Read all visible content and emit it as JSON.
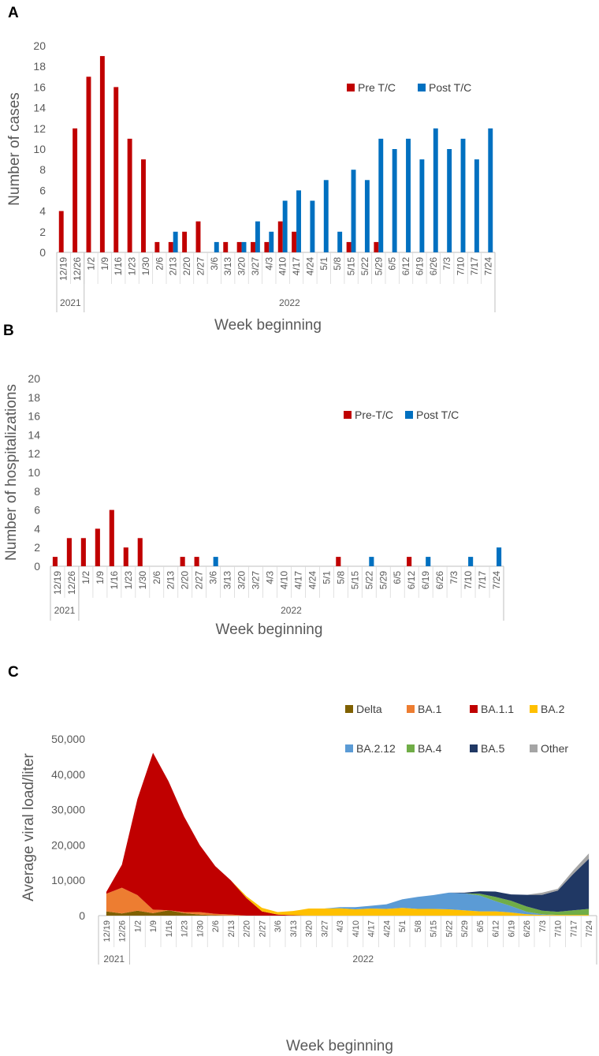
{
  "chart_data": [
    {
      "panel": "A",
      "type": "bar",
      "ylabel": "Number of cases",
      "xlabel": "Week beginning",
      "ylim": [
        0,
        20
      ],
      "yticks": [
        "0",
        "2",
        "4",
        "6",
        "8",
        "10",
        "12",
        "14",
        "16",
        "18",
        "20"
      ],
      "categories": [
        "12/19",
        "12/26",
        "1/2",
        "1/9",
        "1/16",
        "1/23",
        "1/30",
        "2/6",
        "2/13",
        "2/20",
        "2/27",
        "3/6",
        "3/13",
        "3/20",
        "3/27",
        "4/3",
        "4/10",
        "4/17",
        "4/24",
        "5/1",
        "5/8",
        "5/15",
        "5/22",
        "5/29",
        "6/5",
        "6/12",
        "6/19",
        "6/26",
        "7/3",
        "7/10",
        "7/17",
        "7/24"
      ],
      "years": [
        {
          "label": "2021",
          "span": [
            0,
            1
          ]
        },
        {
          "label": "2022",
          "span": [
            2,
            31
          ]
        }
      ],
      "series": [
        {
          "name": "Pre T/C",
          "color": "#C00000",
          "values": [
            4,
            12,
            17,
            19,
            16,
            11,
            9,
            1,
            1,
            2,
            3,
            0,
            1,
            1,
            1,
            1,
            3,
            2,
            0,
            0,
            0,
            1,
            0,
            1,
            0,
            0,
            0,
            0,
            0,
            0,
            0,
            0
          ]
        },
        {
          "name": "Post T/C",
          "color": "#0070C0",
          "values": [
            0,
            0,
            0,
            0,
            0,
            0,
            0,
            0,
            2,
            0,
            0,
            1,
            0,
            1,
            3,
            2,
            5,
            6,
            5,
            7,
            2,
            8,
            7,
            11,
            10,
            11,
            9,
            12,
            10,
            11,
            9,
            12
          ]
        }
      ]
    },
    {
      "panel": "B",
      "type": "bar",
      "ylabel": "Number of hospitalizations",
      "xlabel": "Week beginning",
      "ylim": [
        0,
        20
      ],
      "yticks": [
        "0",
        "2",
        "4",
        "6",
        "8",
        "10",
        "12",
        "14",
        "16",
        "18",
        "20"
      ],
      "categories": [
        "12/19",
        "12/26",
        "1/2",
        "1/9",
        "1/16",
        "1/23",
        "1/30",
        "2/6",
        "2/13",
        "2/20",
        "2/27",
        "3/6",
        "3/13",
        "3/20",
        "3/27",
        "4/3",
        "4/10",
        "4/17",
        "4/24",
        "5/1",
        "5/8",
        "5/15",
        "5/22",
        "5/29",
        "6/5",
        "6/12",
        "6/19",
        "6/26",
        "7/3",
        "7/10",
        "7/17",
        "7/24"
      ],
      "years": [
        {
          "label": "2021",
          "span": [
            0,
            1
          ]
        },
        {
          "label": "2022",
          "span": [
            2,
            31
          ]
        }
      ],
      "series": [
        {
          "name": "Pre-T/C",
          "color": "#C00000",
          "values": [
            1,
            3,
            3,
            4,
            6,
            2,
            3,
            0,
            0,
            1,
            1,
            0,
            0,
            0,
            0,
            0,
            0,
            0,
            0,
            0,
            1,
            0,
            0,
            0,
            0,
            1,
            0,
            0,
            0,
            0,
            0,
            0
          ]
        },
        {
          "name": "Post T/C",
          "color": "#0070C0",
          "values": [
            0,
            0,
            0,
            0,
            0,
            0,
            0,
            0,
            0,
            0,
            0,
            1,
            0,
            0,
            0,
            0,
            0,
            0,
            0,
            0,
            0,
            0,
            1,
            0,
            0,
            0,
            1,
            0,
            0,
            1,
            0,
            2
          ]
        }
      ]
    },
    {
      "panel": "C",
      "type": "area",
      "stacked": true,
      "ylabel": "Average viral load/liter",
      "xlabel": "Week beginning",
      "ylim": [
        0,
        50000
      ],
      "yticks": [
        "0",
        "10,000",
        "20,000",
        "30,000",
        "40,000",
        "50,000"
      ],
      "categories": [
        "12/19",
        "12/26",
        "1/2",
        "1/9",
        "1/16",
        "1/23",
        "1/30",
        "2/6",
        "2/13",
        "2/20",
        "2/27",
        "3/6",
        "3/13",
        "3/20",
        "3/27",
        "4/3",
        "4/10",
        "4/17",
        "4/24",
        "5/1",
        "5/8",
        "5/15",
        "5/22",
        "5/29",
        "6/5",
        "6/12",
        "6/19",
        "6/26",
        "7/3",
        "7/10",
        "7/17",
        "7/24"
      ],
      "years": [
        {
          "label": "2021",
          "span": [
            0,
            1
          ]
        },
        {
          "label": "2022",
          "span": [
            2,
            31
          ]
        }
      ],
      "series": [
        {
          "name": "Delta",
          "color": "#7F6000",
          "values": [
            1200,
            600,
            1400,
            700,
            1500,
            700,
            300,
            100,
            0,
            0,
            0,
            0,
            0,
            0,
            0,
            0,
            0,
            0,
            0,
            0,
            0,
            0,
            0,
            0,
            0,
            0,
            0,
            0,
            0,
            0,
            0,
            0
          ]
        },
        {
          "name": "BA.1",
          "color": "#ED7D31",
          "values": [
            5000,
            7300,
            4400,
            1000,
            0,
            300,
            700,
            400,
            300,
            0,
            0,
            0,
            0,
            0,
            0,
            0,
            0,
            0,
            0,
            0,
            0,
            0,
            0,
            0,
            0,
            0,
            0,
            0,
            0,
            0,
            0,
            0
          ]
        },
        {
          "name": "BA.1.1",
          "color": "#C00000",
          "values": [
            500,
            6500,
            27200,
            44400,
            36500,
            27000,
            19000,
            13500,
            9700,
            5000,
            1200,
            300,
            100,
            0,
            0,
            0,
            0,
            0,
            0,
            0,
            0,
            0,
            0,
            0,
            0,
            0,
            0,
            0,
            0,
            0,
            0,
            0
          ]
        },
        {
          "name": "BA.2",
          "color": "#FFC000",
          "values": [
            0,
            0,
            0,
            0,
            0,
            0,
            0,
            0,
            0,
            500,
            1000,
            700,
            1200,
            2000,
            2000,
            2100,
            1800,
            2000,
            1900,
            2200,
            1900,
            1900,
            1800,
            1500,
            1200,
            1200,
            900,
            400,
            200,
            200,
            200,
            200
          ]
        },
        {
          "name": "BA.2.12",
          "color": "#5B9BD5",
          "values": [
            0,
            0,
            0,
            0,
            0,
            0,
            0,
            0,
            0,
            0,
            0,
            0,
            0,
            0,
            0,
            300,
            600,
            800,
            1300,
            2400,
            3400,
            3900,
            4700,
            4800,
            4500,
            2900,
            1800,
            700,
            200,
            0,
            0,
            0
          ]
        },
        {
          "name": "BA.4",
          "color": "#70AD47",
          "values": [
            0,
            0,
            0,
            0,
            0,
            0,
            0,
            0,
            0,
            0,
            0,
            0,
            0,
            0,
            0,
            0,
            0,
            0,
            0,
            0,
            0,
            0,
            0,
            0,
            500,
            1200,
            1500,
            1500,
            1000,
            900,
            1300,
            1700
          ]
        },
        {
          "name": "BA.5",
          "color": "#203864",
          "values": [
            0,
            0,
            0,
            0,
            0,
            0,
            0,
            0,
            0,
            0,
            0,
            0,
            0,
            0,
            0,
            0,
            0,
            0,
            0,
            0,
            0,
            0,
            0,
            200,
            700,
            1500,
            1800,
            3300,
            4500,
            6000,
            10300,
            14200
          ]
        },
        {
          "name": "Other",
          "color": "#A5A5A5",
          "values": [
            0,
            0,
            0,
            0,
            0,
            0,
            0,
            0,
            0,
            0,
            0,
            0,
            0,
            0,
            0,
            0,
            0,
            0,
            0,
            0,
            0,
            0,
            0,
            0,
            0,
            0,
            0,
            0,
            600,
            500,
            1000,
            1500
          ]
        }
      ]
    }
  ]
}
